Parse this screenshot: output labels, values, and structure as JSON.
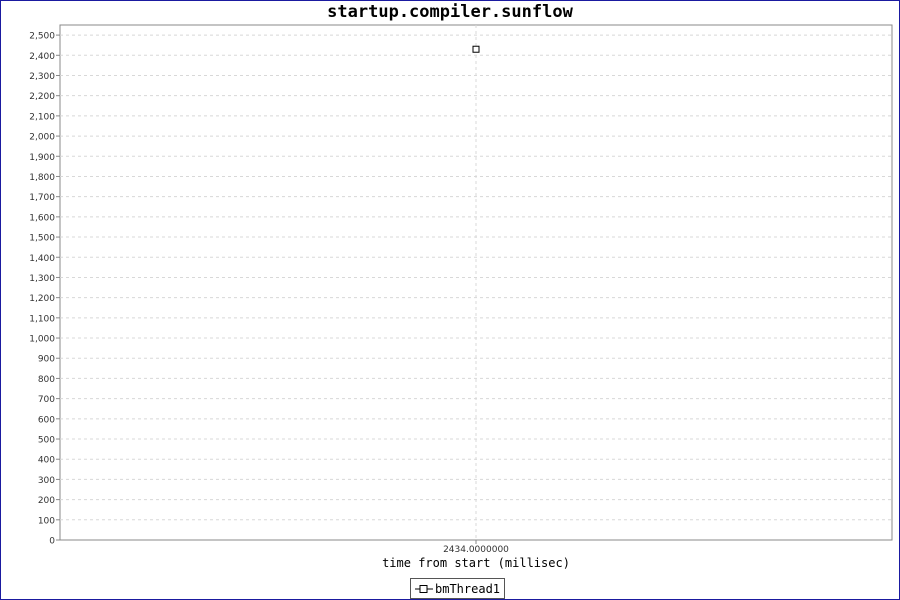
{
  "chart_data": {
    "type": "scatter",
    "title": "startup.compiler.sunflow",
    "xlabel": "time from start (millisec)",
    "ylabel": "",
    "x_ticks": [
      "2434.0000000"
    ],
    "ylim": [
      0,
      2550
    ],
    "y_ticks": [
      0,
      100,
      200,
      300,
      400,
      500,
      600,
      700,
      800,
      900,
      1000,
      1100,
      1200,
      1300,
      1400,
      1500,
      1600,
      1700,
      1800,
      1900,
      2000,
      2100,
      2200,
      2300,
      2400,
      2500
    ],
    "y_tick_labels": [
      "0",
      "100",
      "200",
      "300",
      "400",
      "500",
      "600",
      "700",
      "800",
      "900",
      "1,000",
      "1,100",
      "1,200",
      "1,300",
      "1,400",
      "1,500",
      "1,600",
      "1,700",
      "1,800",
      "1,900",
      "2,000",
      "2,100",
      "2,200",
      "2,300",
      "2,400",
      "2,500"
    ],
    "grid": true,
    "legend_position": "bottom",
    "series": [
      {
        "name": "bmThread1",
        "x": [
          2434.0
        ],
        "y": [
          2430
        ],
        "marker": "square",
        "color": "#000000"
      }
    ]
  }
}
